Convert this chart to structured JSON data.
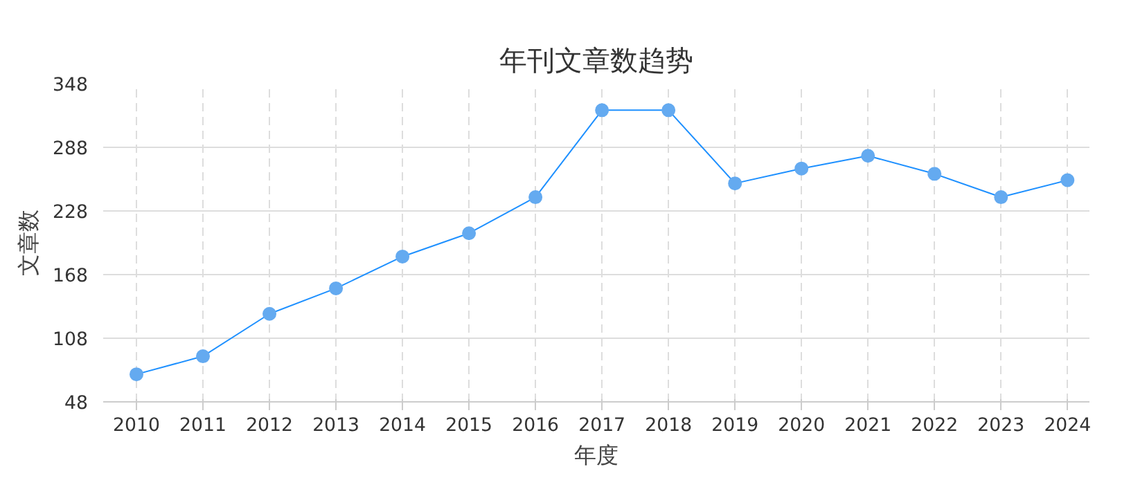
{
  "chart_data": {
    "type": "line",
    "title": "年刊文章数趋势",
    "xlabel": "年度",
    "ylabel": "文章数",
    "categories": [
      "2010",
      "2011",
      "2012",
      "2013",
      "2014",
      "2015",
      "2016",
      "2017",
      "2018",
      "2019",
      "2020",
      "2021",
      "2022",
      "2023",
      "2024"
    ],
    "series": [
      {
        "color": "#1e90ff",
        "values": [
          74,
          91,
          131,
          155,
          185,
          207,
          241,
          323,
          323,
          254,
          268,
          280,
          263,
          241,
          257
        ]
      }
    ],
    "ylim": [
      48,
      348
    ],
    "yticks": [
      48,
      108,
      168,
      228,
      288,
      348
    ],
    "grid": true,
    "marker": "circle",
    "line_style": "solid"
  }
}
